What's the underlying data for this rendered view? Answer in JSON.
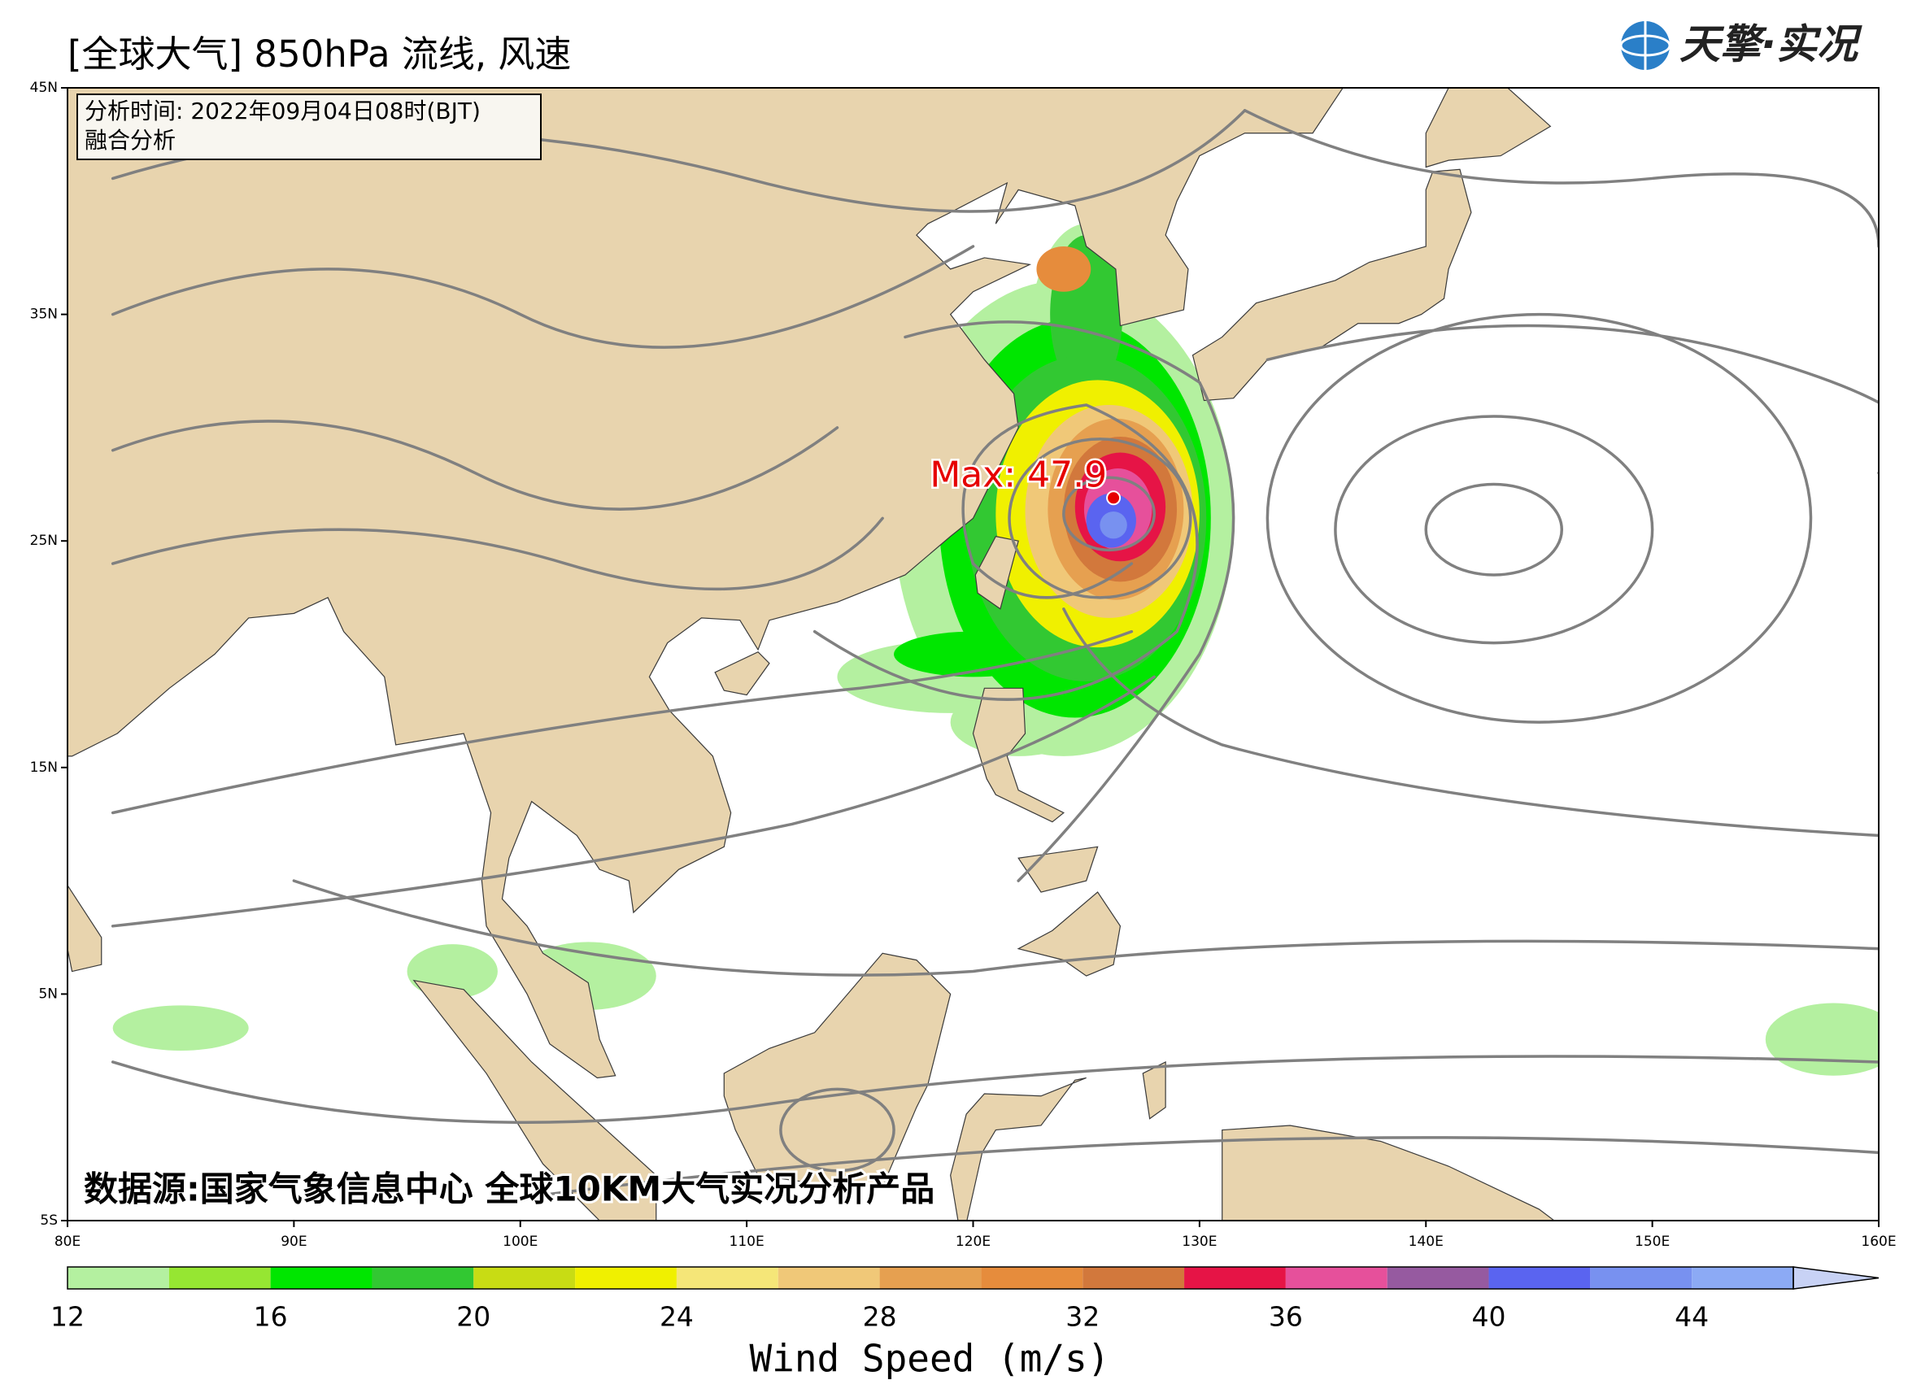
{
  "header": {
    "title": "[全球大气] 850hPa 流线, 风速",
    "logo": "天擎·实况"
  },
  "info": {
    "line1": "分析时间: 2022年09月04日08时(BJT)",
    "line2": "融合分析"
  },
  "chart_data": {
    "type": "map",
    "xlim": [
      80,
      160
    ],
    "ylim": [
      -5,
      45
    ],
    "xticks": [
      {
        "value": 80,
        "label": "80E"
      },
      {
        "value": 90,
        "label": "90E"
      },
      {
        "value": 100,
        "label": "100E"
      },
      {
        "value": 110,
        "label": "110E"
      },
      {
        "value": 120,
        "label": "120E"
      },
      {
        "value": 130,
        "label": "130E"
      },
      {
        "value": 140,
        "label": "140E"
      },
      {
        "value": 150,
        "label": "150E"
      },
      {
        "value": 160,
        "label": "160E"
      }
    ],
    "yticks": [
      {
        "value": 45,
        "label": "45N"
      },
      {
        "value": 35,
        "label": "35N"
      },
      {
        "value": 25,
        "label": "25N"
      },
      {
        "value": 15,
        "label": "15N"
      },
      {
        "value": 5,
        "label": "5N"
      },
      {
        "value": -5,
        "label": "5S"
      }
    ],
    "max": {
      "label": "Max:",
      "value": 47.9,
      "lon": 126.2,
      "lat": 26.9
    },
    "source": "数据源:国家气象信息中心 全球10KM大气实况分析产品",
    "colorbar": {
      "label": "Wind Speed (m/s)",
      "levels": [
        12,
        14,
        16,
        18,
        20,
        22,
        24,
        26,
        28,
        30,
        32,
        34,
        36,
        38,
        40,
        42,
        44,
        46
      ],
      "colors": [
        "#b4f0a0",
        "#96e632",
        "#00e600",
        "#32c832",
        "#c8dc14",
        "#f0f000",
        "#f5e678",
        "#f0c878",
        "#e6a050",
        "#e68c3c",
        "#d2783c",
        "#e61446",
        "#e6509b",
        "#965aa0",
        "#5a64f0",
        "#7891f0",
        "#8caaf5"
      ],
      "extend_color": "#c8d2f5",
      "ticks": [
        12,
        16,
        20,
        24,
        28,
        32,
        36,
        40,
        44
      ]
    }
  }
}
